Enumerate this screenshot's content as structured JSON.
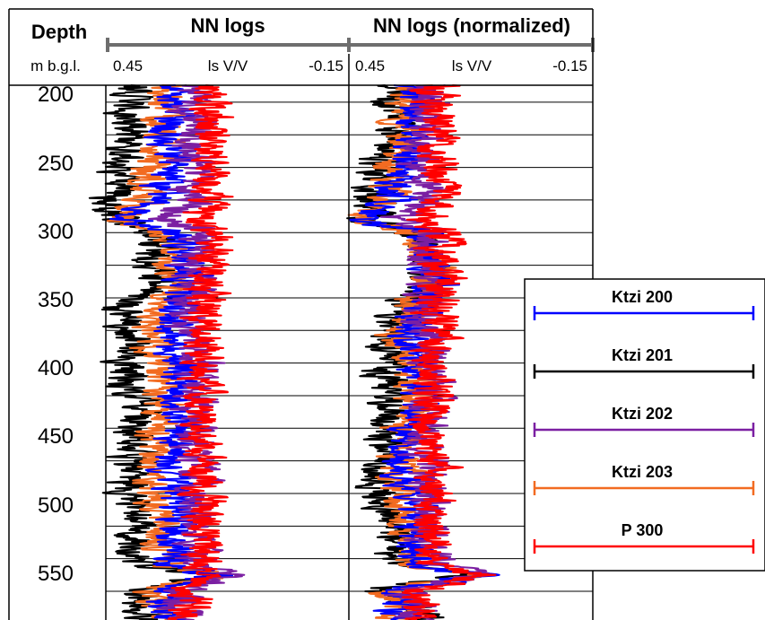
{
  "chart_data": {
    "type": "line",
    "depth_axis": {
      "header": "Depth",
      "unit": "m b.g.l.",
      "range": [
        187,
        597
      ],
      "ticks": [
        200,
        250,
        300,
        350,
        400,
        450,
        500,
        550
      ],
      "grid_interval": 25
    },
    "tracks": [
      {
        "title": "NN logs",
        "unit": "ls V/V",
        "scale_left": "0.45",
        "scale_right": "-0.15",
        "range": [
          0.45,
          -0.15
        ]
      },
      {
        "title": "NN logs (normalized)",
        "unit": "ls V/V",
        "scale_left": "0.45",
        "scale_right": "-0.15",
        "range": [
          0.45,
          -0.15
        ]
      }
    ],
    "legend": {
      "placement": "right",
      "entries": [
        "Ktzi 200",
        "Ktzi 201",
        "Ktzi 202",
        "Ktzi 203",
        "P 300"
      ]
    },
    "series": [
      {
        "name": "Ktzi 200",
        "color": "#0000ff",
        "depth": [
          188,
          200,
          220,
          240,
          260,
          280,
          290,
          300,
          320,
          340,
          355,
          370,
          380,
          400,
          420,
          440,
          460,
          480,
          500,
          520,
          540,
          555,
          562,
          575,
          590,
          597
        ],
        "raw": [
          0.27,
          0.28,
          0.3,
          0.29,
          0.31,
          0.33,
          0.4,
          0.27,
          0.26,
          0.24,
          0.27,
          0.3,
          0.3,
          0.27,
          0.26,
          0.27,
          0.28,
          0.29,
          0.28,
          0.27,
          0.27,
          0.28,
          0.18,
          0.3,
          0.31,
          0.29
        ],
        "normalized": [
          0.3,
          0.29,
          0.31,
          0.3,
          0.33,
          0.35,
          0.42,
          0.28,
          0.25,
          0.23,
          0.27,
          0.3,
          0.31,
          0.28,
          0.27,
          0.29,
          0.31,
          0.33,
          0.3,
          0.28,
          0.28,
          0.29,
          0.14,
          0.34,
          0.33,
          0.31
        ]
      },
      {
        "name": "Ktzi 201",
        "color": "#000000",
        "depth": [
          188,
          200,
          220,
          240,
          260,
          280,
          290,
          300,
          320,
          340,
          355,
          370,
          380,
          400,
          420,
          440,
          460,
          480,
          500,
          520,
          540,
          555,
          562,
          575,
          590,
          597
        ],
        "raw": [
          0.38,
          0.4,
          0.39,
          0.41,
          0.42,
          0.44,
          0.43,
          0.35,
          0.33,
          0.31,
          0.41,
          0.4,
          0.39,
          0.4,
          0.39,
          0.37,
          0.38,
          0.39,
          0.4,
          0.37,
          0.38,
          0.36,
          0.21,
          0.38,
          0.36,
          0.34
        ],
        "normalized": [
          0.32,
          0.35,
          0.33,
          0.37,
          0.38,
          0.4,
          0.41,
          0.3,
          0.26,
          0.25,
          0.33,
          0.35,
          0.34,
          0.36,
          0.37,
          0.34,
          0.36,
          0.37,
          0.38,
          0.35,
          0.35,
          0.33,
          0.15,
          0.39,
          0.28,
          0.26
        ]
      },
      {
        "name": "Ktzi 202",
        "color": "#7b1fa2",
        "depth": [
          188,
          200,
          220,
          240,
          260,
          280,
          290,
          300,
          320,
          340,
          355,
          370,
          380,
          400,
          420,
          440,
          460,
          480,
          500,
          520,
          540,
          555,
          562,
          575,
          590,
          597
        ],
        "raw": [
          0.24,
          0.25,
          0.23,
          0.24,
          0.23,
          0.24,
          0.3,
          0.22,
          0.24,
          0.23,
          0.25,
          0.26,
          0.24,
          0.22,
          0.23,
          0.24,
          0.24,
          0.23,
          0.22,
          0.22,
          0.23,
          0.22,
          0.16,
          0.28,
          0.26,
          0.27
        ],
        "normalized": [
          0.26,
          0.26,
          0.25,
          0.27,
          0.26,
          0.27,
          0.33,
          0.24,
          0.26,
          0.25,
          0.27,
          0.28,
          0.26,
          0.24,
          0.25,
          0.26,
          0.27,
          0.26,
          0.25,
          0.25,
          0.26,
          0.24,
          0.13,
          0.31,
          0.29,
          0.3
        ]
      },
      {
        "name": "Ktzi 203",
        "color": "#f26b21",
        "depth": [
          188,
          200,
          220,
          240,
          260,
          280,
          290,
          300,
          320,
          340,
          355,
          370,
          380,
          400,
          420,
          440,
          460,
          480,
          500,
          520,
          540,
          555,
          562,
          575,
          590,
          597
        ],
        "raw": [
          0.3,
          0.31,
          0.32,
          0.33,
          0.35,
          0.36,
          0.42,
          0.3,
          0.28,
          0.27,
          0.31,
          0.33,
          0.34,
          0.32,
          0.31,
          0.32,
          0.33,
          0.34,
          0.33,
          0.32,
          0.31,
          0.3,
          0.17,
          0.34,
          0.33,
          0.32
        ],
        "normalized": [
          0.29,
          0.31,
          0.31,
          0.33,
          0.35,
          0.37,
          0.43,
          0.29,
          0.26,
          0.25,
          0.3,
          0.32,
          0.33,
          0.31,
          0.3,
          0.31,
          0.32,
          0.33,
          0.32,
          0.31,
          0.3,
          0.29,
          0.14,
          0.36,
          0.34,
          0.33
        ]
      },
      {
        "name": "P 300",
        "color": "#ff0000",
        "depth": [
          188,
          200,
          220,
          240,
          260,
          280,
          290,
          300,
          320,
          340,
          355,
          370,
          380,
          400,
          420,
          440,
          460,
          480,
          500,
          520,
          540,
          555,
          562,
          575,
          590,
          597
        ],
        "raw": [
          0.19,
          0.19,
          0.2,
          0.19,
          0.2,
          0.19,
          0.24,
          0.18,
          0.2,
          0.21,
          0.2,
          0.21,
          0.21,
          0.22,
          0.21,
          0.22,
          0.22,
          0.21,
          0.21,
          0.22,
          0.22,
          0.21,
          0.19,
          0.25,
          0.24,
          0.24
        ],
        "normalized": [
          0.24,
          0.23,
          0.23,
          0.23,
          0.23,
          0.22,
          0.27,
          0.22,
          0.23,
          0.22,
          0.24,
          0.24,
          0.24,
          0.24,
          0.24,
          0.25,
          0.25,
          0.24,
          0.24,
          0.25,
          0.25,
          0.24,
          0.12,
          0.29,
          0.27,
          0.27
        ]
      }
    ]
  }
}
